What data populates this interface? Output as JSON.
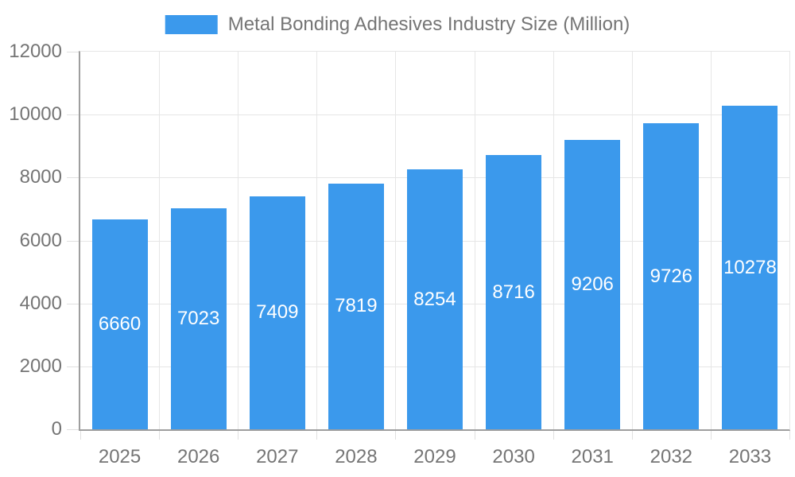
{
  "legend": {
    "label": "Metal Bonding Adhesives Industry Size (Million)"
  },
  "chart_data": {
    "type": "bar",
    "title": "Metal Bonding Adhesives Industry Size (Million)",
    "categories": [
      "2025",
      "2026",
      "2027",
      "2028",
      "2029",
      "2030",
      "2031",
      "2032",
      "2033"
    ],
    "values": [
      6660,
      7023,
      7409,
      7819,
      8254,
      8716,
      9206,
      9726,
      10278
    ],
    "series": [
      {
        "name": "Metal Bonding Adhesives Industry Size (Million)",
        "values": [
          6660,
          7023,
          7409,
          7819,
          8254,
          8716,
          9206,
          9726,
          10278
        ]
      }
    ],
    "xlabel": "",
    "ylabel": "",
    "ylim": [
      0,
      12000
    ],
    "yticks": [
      0,
      2000,
      4000,
      6000,
      8000,
      10000,
      12000
    ],
    "grid": true,
    "legend_position": "top",
    "value_labels": "inside-center"
  },
  "colors": {
    "bar": "#3B99EC",
    "gridline": "#E6E6E6",
    "tick": "#E0E0E0",
    "axis": "#9E9E9E",
    "text": "#757575",
    "value_text": "#FFFFFF",
    "background": "#FFFFFF"
  }
}
